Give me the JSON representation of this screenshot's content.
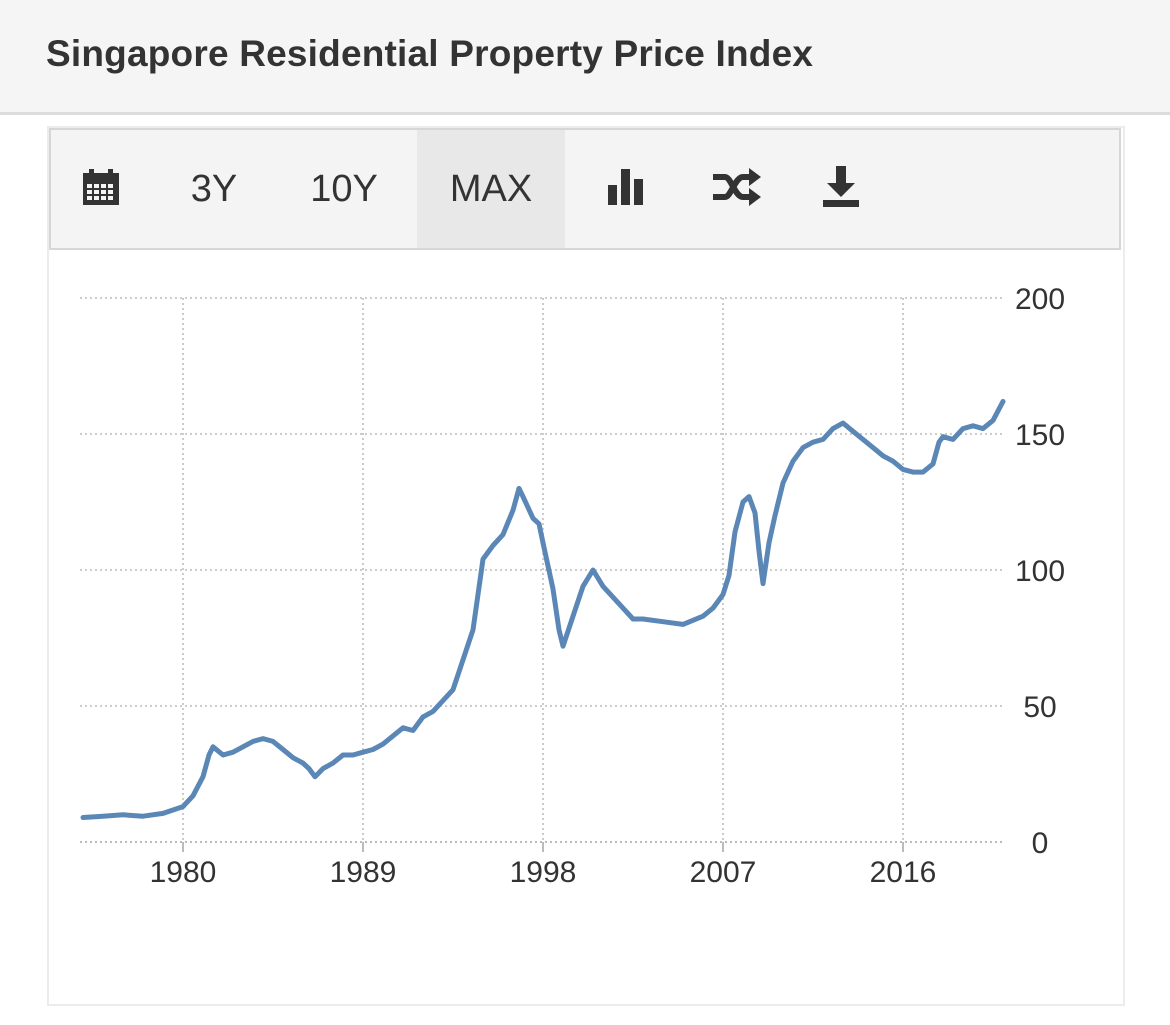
{
  "header": {
    "title": "Singapore Residential Property Price Index"
  },
  "toolbar": {
    "items": [
      {
        "name": "calendar-button",
        "icon": "calendar-icon",
        "label": ""
      },
      {
        "name": "range-3y-button",
        "label": "3Y"
      },
      {
        "name": "range-10y-button",
        "label": "10Y"
      },
      {
        "name": "range-max-button",
        "label": "MAX",
        "active": true
      },
      {
        "name": "chart-type-button",
        "icon": "bar-chart-icon",
        "label": ""
      },
      {
        "name": "compare-button",
        "icon": "shuffle-icon",
        "label": ""
      },
      {
        "name": "download-button",
        "icon": "download-icon",
        "label": ""
      }
    ]
  },
  "chart_data": {
    "type": "line",
    "title": "",
    "xlabel": "",
    "ylabel": "",
    "xlim": [
      1975,
      2021.5
    ],
    "ylim": [
      0,
      200
    ],
    "grid": true,
    "line_color": "#5b87b7",
    "xticks": [
      "1980",
      "1989",
      "1998",
      "2007",
      "2016"
    ],
    "yticks": [
      "0",
      "50",
      "100",
      "150",
      "200"
    ],
    "series": [
      {
        "values": [
          [
            1975.0,
            9
          ],
          [
            1976.0,
            9.5
          ],
          [
            1977.0,
            10
          ],
          [
            1978.0,
            9.5
          ],
          [
            1979.0,
            10.5
          ],
          [
            1980.0,
            13
          ],
          [
            1980.5,
            17
          ],
          [
            1981.0,
            24
          ],
          [
            1981.3,
            32
          ],
          [
            1981.5,
            35
          ],
          [
            1982.0,
            32
          ],
          [
            1982.5,
            33
          ],
          [
            1983.0,
            35
          ],
          [
            1983.5,
            37
          ],
          [
            1984.0,
            38
          ],
          [
            1984.5,
            37
          ],
          [
            1985.0,
            34
          ],
          [
            1985.5,
            31
          ],
          [
            1986.0,
            29
          ],
          [
            1986.3,
            27
          ],
          [
            1986.6,
            24
          ],
          [
            1987.0,
            27
          ],
          [
            1987.5,
            29
          ],
          [
            1988.0,
            32
          ],
          [
            1988.5,
            32
          ],
          [
            1989.0,
            33
          ],
          [
            1989.5,
            34
          ],
          [
            1990.0,
            36
          ],
          [
            1990.5,
            39
          ],
          [
            1991.0,
            42
          ],
          [
            1991.5,
            41
          ],
          [
            1992.0,
            46
          ],
          [
            1992.5,
            48
          ],
          [
            1993.0,
            52
          ],
          [
            1993.5,
            56
          ],
          [
            1994.0,
            67
          ],
          [
            1994.5,
            78
          ],
          [
            1995.0,
            104
          ],
          [
            1995.5,
            109
          ],
          [
            1996.0,
            113
          ],
          [
            1996.5,
            122
          ],
          [
            1996.8,
            130
          ],
          [
            1997.0,
            127
          ],
          [
            1997.5,
            119
          ],
          [
            1997.8,
            117
          ],
          [
            1998.0,
            110
          ],
          [
            1998.5,
            93
          ],
          [
            1998.8,
            78
          ],
          [
            1999.0,
            72
          ],
          [
            1999.5,
            83
          ],
          [
            2000.0,
            94
          ],
          [
            2000.5,
            100
          ],
          [
            2001.0,
            94
          ],
          [
            2001.5,
            90
          ],
          [
            2002.0,
            86
          ],
          [
            2002.5,
            82
          ],
          [
            2003.0,
            82
          ],
          [
            2004.0,
            81
          ],
          [
            2005.0,
            80
          ],
          [
            2006.0,
            83
          ],
          [
            2006.5,
            86
          ],
          [
            2007.0,
            91
          ],
          [
            2007.3,
            98
          ],
          [
            2007.6,
            114
          ],
          [
            2008.0,
            125
          ],
          [
            2008.3,
            127
          ],
          [
            2008.6,
            121
          ],
          [
            2008.8,
            107
          ],
          [
            2009.0,
            95
          ],
          [
            2009.3,
            110
          ],
          [
            2009.6,
            120
          ],
          [
            2010.0,
            132
          ],
          [
            2010.5,
            140
          ],
          [
            2011.0,
            145
          ],
          [
            2011.5,
            147
          ],
          [
            2012.0,
            148
          ],
          [
            2012.5,
            152
          ],
          [
            2013.0,
            154
          ],
          [
            2013.5,
            151
          ],
          [
            2014.0,
            148
          ],
          [
            2014.5,
            145
          ],
          [
            2015.0,
            142
          ],
          [
            2015.5,
            140
          ],
          [
            2016.0,
            137
          ],
          [
            2016.5,
            136
          ],
          [
            2017.0,
            136
          ],
          [
            2017.5,
            139
          ],
          [
            2017.8,
            147
          ],
          [
            2018.0,
            149
          ],
          [
            2018.5,
            148
          ],
          [
            2019.0,
            152
          ],
          [
            2019.5,
            153
          ],
          [
            2020.0,
            152
          ],
          [
            2020.5,
            155
          ],
          [
            2021.0,
            162
          ]
        ]
      }
    ]
  },
  "colors": {
    "header_bg": "#f5f5f5",
    "toolbar_bg": "#f4f4f4",
    "active_tab_bg": "#e8e8e8",
    "grid": "#cccccc",
    "axis_text": "#333333",
    "line": "#5b87b7"
  }
}
